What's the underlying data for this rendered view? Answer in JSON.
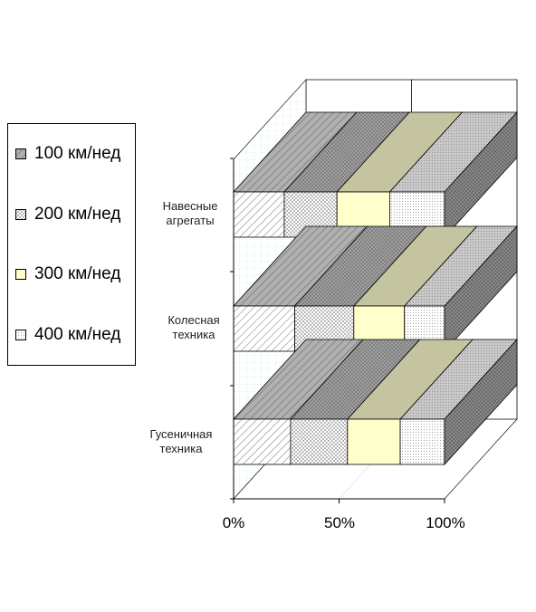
{
  "chart_data": {
    "type": "bar",
    "orientation": "horizontal",
    "stacked": "percent",
    "three_d": true,
    "categories": [
      "Навесные агрегаты",
      "Колесная техника",
      "Гусеничная техника"
    ],
    "category_lines": [
      [
        "Навесные",
        "агрегаты"
      ],
      [
        "Колесная",
        "техника"
      ],
      [
        "Гусеничная",
        "техника"
      ]
    ],
    "series": [
      {
        "name": "100 км/нед",
        "values": [
          24,
          29,
          27
        ]
      },
      {
        "name": "200 км/нед",
        "values": [
          25,
          28,
          27
        ]
      },
      {
        "name": "300 км/нед",
        "values": [
          25,
          24,
          25
        ]
      },
      {
        "name": "400 км/нед",
        "values": [
          26,
          19,
          21
        ]
      }
    ],
    "xticks": [
      "0%",
      "50%",
      "100%"
    ],
    "xlim": [
      0,
      100
    ],
    "legend": "left",
    "grid": true
  },
  "colors": {
    "series_front": [
      "#ffffff",
      "#ffffff",
      "#ffffcc",
      "#ffffff"
    ],
    "series_top": [
      "#a8a8a8",
      "#9a9a9a",
      "#c4c4a0",
      "#b8b8b8"
    ],
    "side": "#7c7c7c",
    "grid": "#c8ecec"
  }
}
